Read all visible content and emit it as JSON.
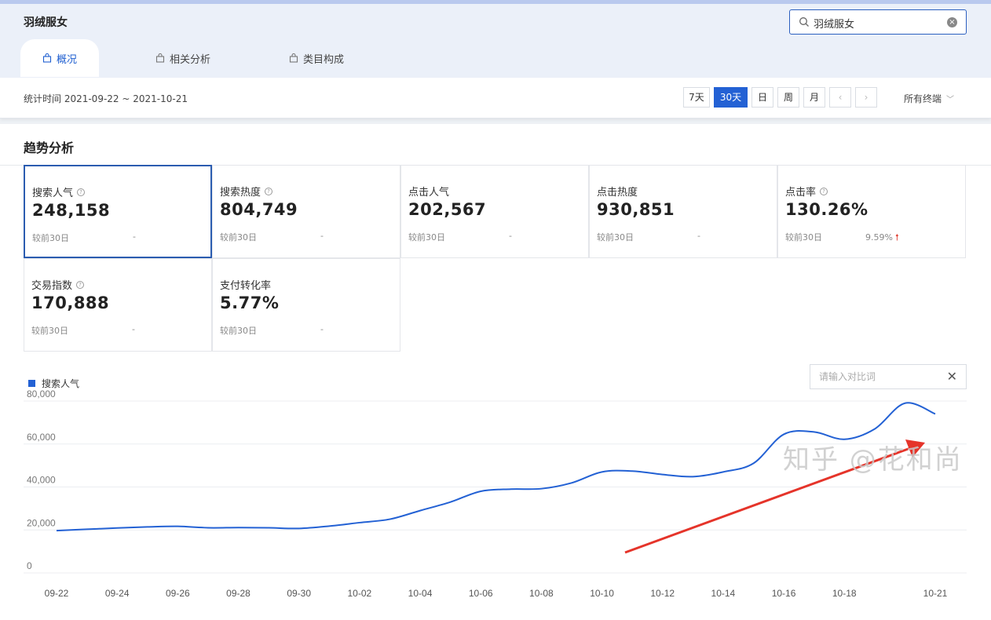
{
  "header": {
    "keyword": "羽绒服女",
    "search_value": "羽绒服女",
    "tabs": [
      {
        "label": "概况",
        "active": true
      },
      {
        "label": "相关分析",
        "active": false
      },
      {
        "label": "类目构成",
        "active": false
      }
    ]
  },
  "datebar": {
    "stat_range": "统计时间 2021-09-22 ~ 2021-10-21",
    "buttons": [
      {
        "label": "7天",
        "active": false
      },
      {
        "label": "30天",
        "active": true
      },
      {
        "label": "日",
        "active": false
      },
      {
        "label": "周",
        "active": false
      },
      {
        "label": "月",
        "active": false
      }
    ],
    "prev_label": "‹",
    "next_label": "›",
    "terminal": "所有终端"
  },
  "trend": {
    "title": "趋势分析",
    "metrics": [
      {
        "label": "搜索人气",
        "value": "248,158",
        "compare": "较前30日",
        "delta": "-",
        "help": true,
        "active": true
      },
      {
        "label": "搜索热度",
        "value": "804,749",
        "compare": "较前30日",
        "delta": "-",
        "help": true,
        "active": false
      },
      {
        "label": "点击人气",
        "value": "202,567",
        "compare": "较前30日",
        "delta": "-",
        "help": false,
        "active": false
      },
      {
        "label": "点击热度",
        "value": "930,851",
        "compare": "较前30日",
        "delta": "-",
        "help": false,
        "active": false
      },
      {
        "label": "点击率",
        "value": "130.26%",
        "compare": "较前30日",
        "delta": "9.59%",
        "delta_up": true,
        "help": true,
        "active": false
      },
      {
        "label": "交易指数",
        "value": "170,888",
        "compare": "较前30日",
        "delta": "-",
        "help": true,
        "active": false
      },
      {
        "label": "支付转化率",
        "value": "5.77%",
        "compare": "较前30日",
        "delta": "-",
        "help": false,
        "active": false
      }
    ],
    "compare_placeholder": "请输入对比词",
    "watermark": "知乎 @花和尚"
  },
  "chart_data": {
    "type": "line",
    "series": [
      {
        "name": "搜索人气",
        "color": "#2361d4",
        "x": [
          "09-22",
          "09-23",
          "09-24",
          "09-25",
          "09-26",
          "09-27",
          "09-28",
          "09-29",
          "09-30",
          "10-01",
          "10-02",
          "10-03",
          "10-04",
          "10-05",
          "10-06",
          "10-07",
          "10-08",
          "10-09",
          "10-10",
          "10-11",
          "10-12",
          "10-13",
          "10-14",
          "10-15",
          "10-16",
          "10-17",
          "10-18",
          "10-19",
          "10-20",
          "10-21"
        ],
        "values": [
          19700,
          20300,
          20900,
          21400,
          21700,
          21000,
          21100,
          21000,
          20700,
          21800,
          23400,
          25000,
          29000,
          33000,
          38000,
          39000,
          39200,
          41900,
          47000,
          47400,
          45800,
          44800,
          47000,
          51000,
          64500,
          65600,
          62200,
          67000,
          79000,
          74000
        ]
      }
    ],
    "x_ticks": [
      "09-22",
      "09-24",
      "09-26",
      "09-28",
      "09-30",
      "10-02",
      "10-04",
      "10-06",
      "10-08",
      "10-10",
      "10-12",
      "10-14",
      "10-16",
      "10-18",
      "10-21"
    ],
    "y_ticks": [
      "0",
      "20,000",
      "40,000",
      "60,000",
      "80,000"
    ],
    "ylim": [
      0,
      80000
    ],
    "grid": true,
    "legend_position": "top-left",
    "arrow_color": "#e5342a"
  }
}
